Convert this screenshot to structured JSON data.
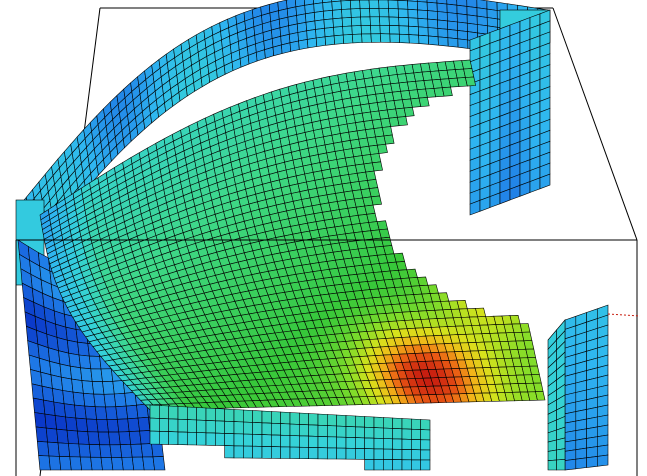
{
  "viewport": {
    "name": "3d-fe-mesh-viewport",
    "background": "#ffffff"
  },
  "render": {
    "description_visible_text": "",
    "colormap": [
      "#0a37c8",
      "#1e78e6",
      "#2fb6f0",
      "#35d2d8",
      "#3ed88a",
      "#37c83a",
      "#7fdc2a",
      "#d8e21c",
      "#f2b419",
      "#ea5a14",
      "#c81e10"
    ],
    "mesh_line_color": "#000000",
    "bounding_box_color": "#000000",
    "axis_tick_color": "#c81e10"
  }
}
